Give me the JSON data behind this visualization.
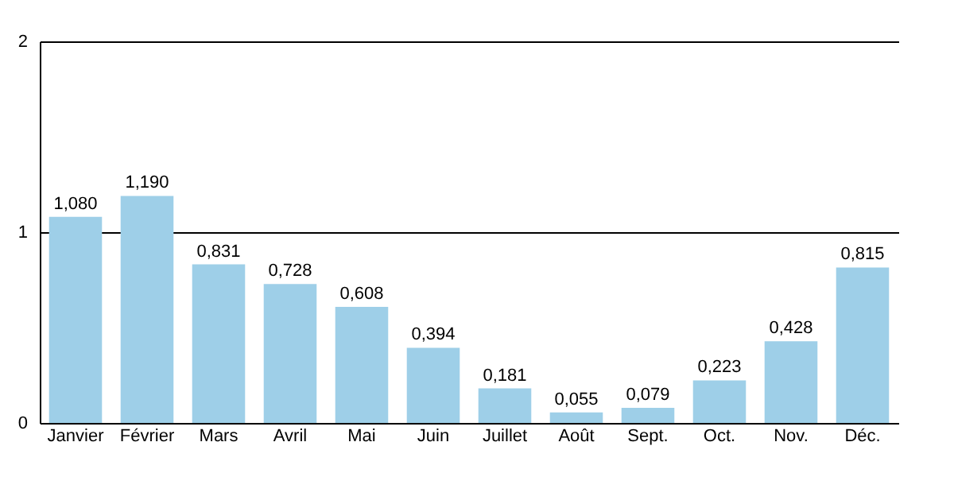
{
  "chart_data": {
    "type": "bar",
    "categories": [
      "Janvier",
      "Février",
      "Mars",
      "Avril",
      "Mai",
      "Juin",
      "Juillet",
      "Août",
      "Sept.",
      "Oct.",
      "Nov.",
      "Déc."
    ],
    "values": [
      1.08,
      1.19,
      0.831,
      0.728,
      0.608,
      0.394,
      0.181,
      0.055,
      0.079,
      0.223,
      0.428,
      0.815
    ],
    "value_labels": [
      "1,080",
      "1,190",
      "0,831",
      "0,728",
      "0,608",
      "0,394",
      "0,181",
      "0,055",
      "0,079",
      "0,223",
      "0,428",
      "0,815"
    ],
    "color": "#9ecfe8",
    "ylim": [
      0,
      2
    ],
    "yticks": [
      0,
      1,
      2
    ],
    "grid": "y"
  }
}
